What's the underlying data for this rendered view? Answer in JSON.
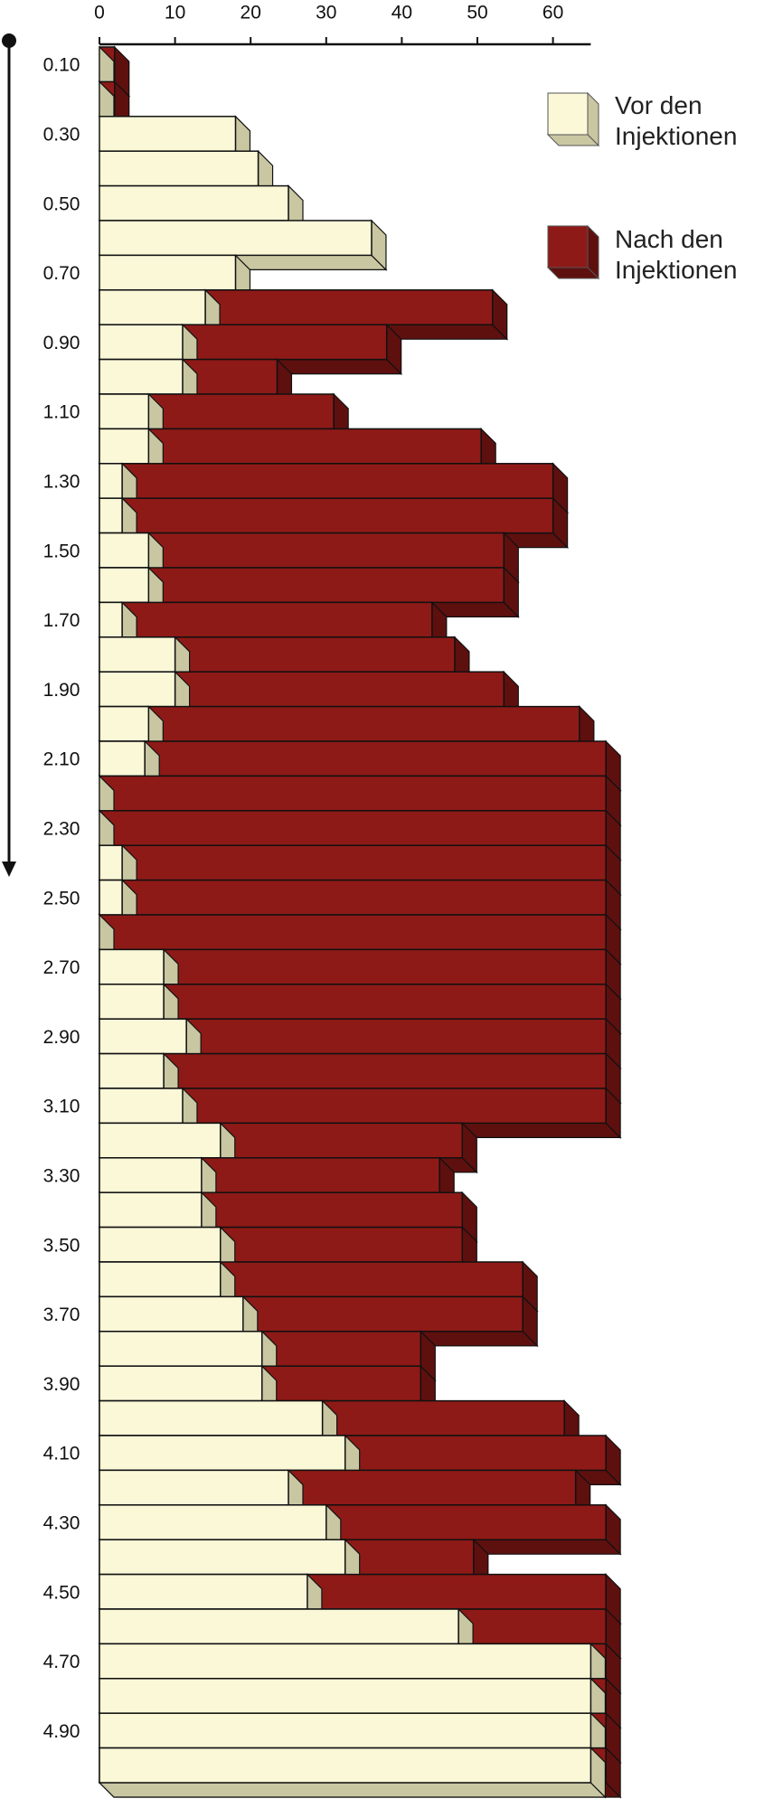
{
  "chart_data": {
    "type": "bar3d-horizontal",
    "categories": [
      "0.10",
      null,
      "0.30",
      null,
      "0.50",
      null,
      "0.70",
      null,
      "0.90",
      null,
      "1.10",
      null,
      "1.30",
      null,
      "1.50",
      null,
      "1.70",
      null,
      "1.90",
      null,
      "2.10",
      null,
      "2.30",
      null,
      "2.50",
      null,
      "2.70",
      null,
      "2.90",
      null,
      "3.10",
      null,
      "3.30",
      null,
      "3.50",
      null,
      "3.70",
      null,
      "3.90",
      null,
      "4.10",
      null,
      "4.30",
      null,
      "4.50",
      null,
      "4.70",
      null,
      "4.90",
      null
    ],
    "series": [
      {
        "name": "Vor den Injektionen",
        "color": "#fbf8d8",
        "side_color": "#c9c7a2",
        "values": [
          0,
          0,
          18,
          21,
          25,
          36,
          18,
          14,
          11,
          11,
          6.5,
          6.5,
          3,
          3,
          6.5,
          6.5,
          3,
          10,
          10,
          6.5,
          6,
          0,
          0,
          3,
          3,
          0,
          8.5,
          8.5,
          11.5,
          8.5,
          11,
          16,
          13.5,
          13.5,
          16,
          16,
          19,
          21.5,
          21.5,
          29.5,
          32.5,
          25,
          30,
          32.5,
          27.5,
          47.5,
          65,
          65,
          65,
          65
        ]
      },
      {
        "name": "Nach den Injektionen",
        "color": "#8e1a17",
        "side_color": "#5e100e",
        "values": [
          2,
          2,
          null,
          null,
          null,
          null,
          null,
          52,
          38,
          23.5,
          31,
          50.5,
          60,
          60,
          53.5,
          53.5,
          44,
          47,
          53.5,
          63.5,
          67,
          67,
          67,
          67,
          67,
          67,
          67,
          67,
          67,
          67,
          67,
          48,
          45,
          48,
          48,
          56,
          56,
          42.5,
          42.5,
          61.5,
          67,
          63,
          67,
          49.5,
          67,
          67,
          67,
          67,
          67,
          67
        ]
      }
    ],
    "xlim": [
      0,
      65
    ],
    "xticks": [
      0,
      10,
      20,
      30,
      40,
      50,
      60
    ]
  }
}
